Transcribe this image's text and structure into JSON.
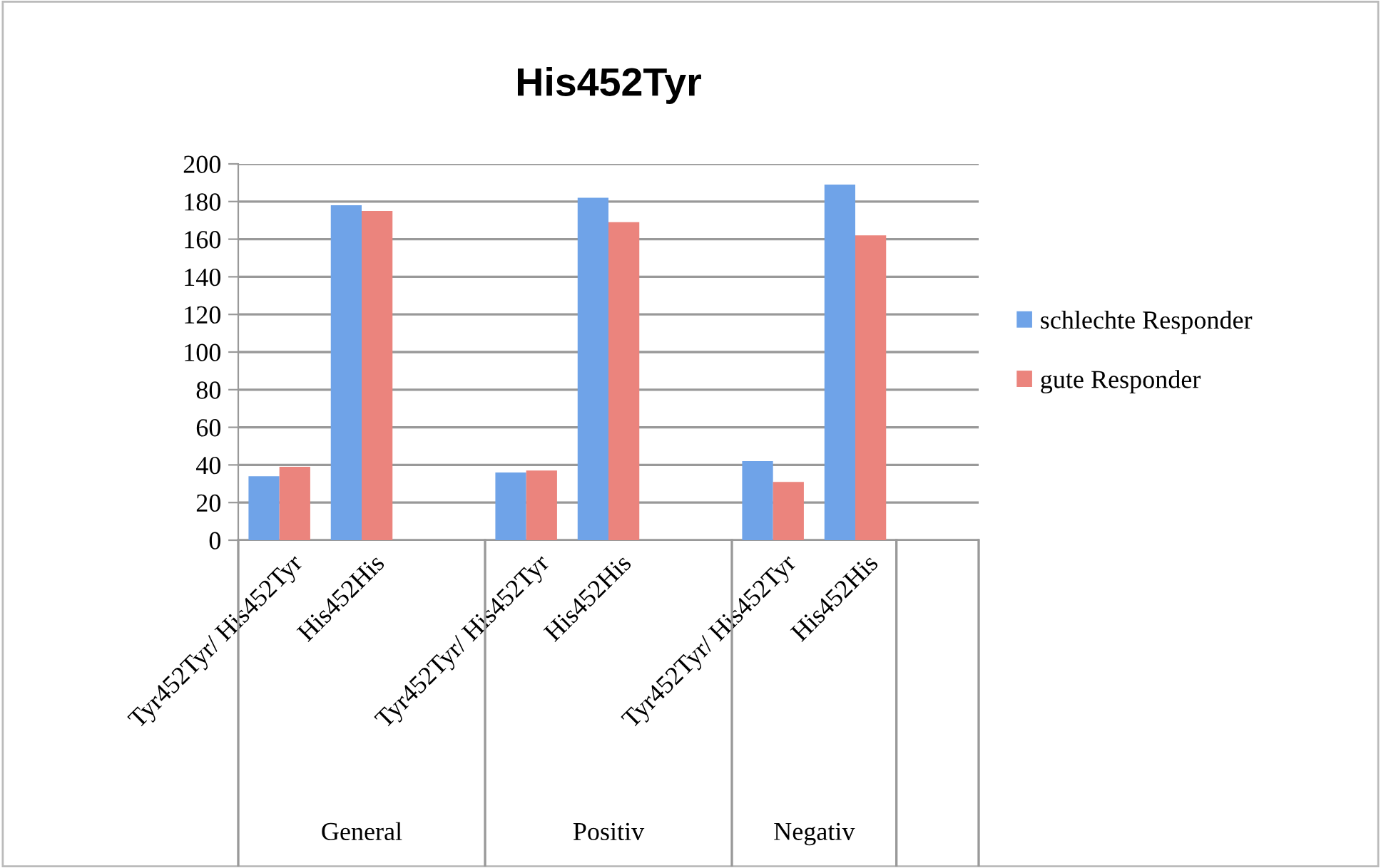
{
  "chart_data": {
    "type": "bar",
    "title": "His452Tyr",
    "categories": [
      "Tyr452Tyr/ His452Tyr",
      "His452His",
      null,
      "Tyr452Tyr/ His452Tyr",
      "His452His",
      null,
      "Tyr452Tyr/ His452Tyr",
      "His452His",
      null
    ],
    "series": [
      {
        "name": "schlechte Responder",
        "color": "#6fa3e8",
        "values": [
          34,
          178,
          null,
          36,
          182,
          null,
          42,
          189,
          null
        ]
      },
      {
        "name": "gute Responder",
        "color": "#eb847d",
        "values": [
          39,
          175,
          null,
          37,
          169,
          null,
          31,
          162,
          null
        ]
      }
    ],
    "annotations": [
      "General",
      "Positiv",
      "Negativ"
    ],
    "ylim": [
      0,
      200
    ],
    "yticks": [
      0,
      20,
      40,
      60,
      80,
      100,
      120,
      140,
      160,
      180,
      200
    ],
    "grid": "y",
    "legend": "right"
  }
}
